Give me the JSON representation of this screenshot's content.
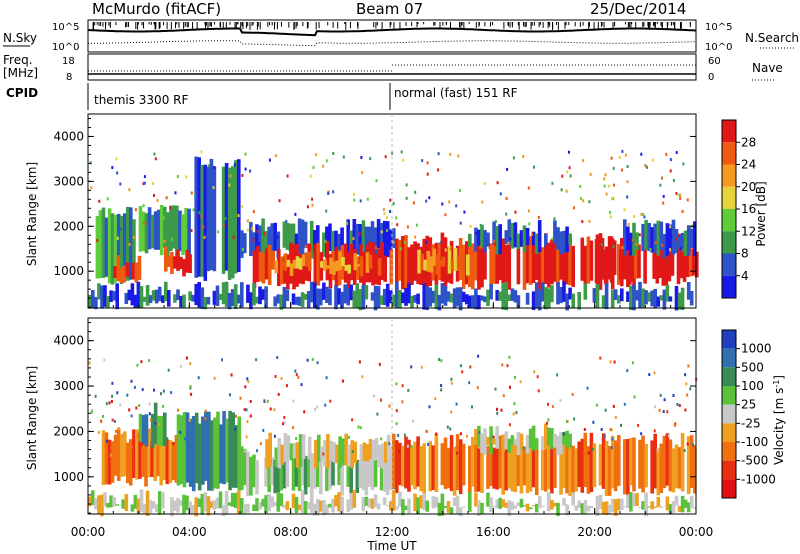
{
  "header": {
    "station": "McMurdo (fitACF)",
    "beam": "Beam 07",
    "date": "25/Dec/2014"
  },
  "strip": {
    "nsky_label": "N.Sky",
    "nsky_ticks": [
      "10^5",
      "10^0"
    ],
    "nsearch_label": "N.Search",
    "nsearch_ticks": [
      "10^5",
      "10^0"
    ],
    "freq_label": "Freq.",
    "freq_unit": "[MHz]",
    "freq_ticks": [
      "18",
      "8"
    ],
    "nave_label": "Nave",
    "nave_ticks": [
      "60",
      "0"
    ],
    "cpid_label": "CPID",
    "cpid_segments": [
      "themis 3300 RF",
      "normal (fast) 151 RF"
    ]
  },
  "xaxis": {
    "label": "Time UT",
    "ticks": [
      "00:00",
      "04:00",
      "08:00",
      "12:00",
      "16:00",
      "20:00",
      "00:00"
    ]
  },
  "power_panel": {
    "ylabel": "Slant Range [km]",
    "yticks": [
      "1000",
      "2000",
      "3000",
      "4000"
    ],
    "cbar_label": "Power [dB]",
    "cbar_ticks": [
      "4",
      "8",
      "12",
      "16",
      "20",
      "24",
      "28"
    ],
    "cbar_colors": [
      "#1a1ae6",
      "#2e52c8",
      "#3d9a4a",
      "#5fcc3a",
      "#e6d23a",
      "#f59a1e",
      "#f05a10",
      "#e01818"
    ]
  },
  "velocity_panel": {
    "ylabel": "Slant Range [km]",
    "yticks": [
      "1000",
      "2000",
      "3000",
      "4000"
    ],
    "cbar_label": "Velocity [m s",
    "cbar_label_sup": "-1",
    "cbar_label_end": "]",
    "cbar_ticks": [
      "1000",
      "500",
      "100",
      "25",
      "-25",
      "-100",
      "-500",
      "-1000"
    ],
    "cbar_colors": [
      "#2040c0",
      "#3070b0",
      "#3a8a58",
      "#5ac23a",
      "#c8c8c8",
      "#f0a020",
      "#f07010",
      "#e83010",
      "#e01010"
    ]
  },
  "chart_data": {
    "type": "heatmap",
    "x_range_hours": [
      0,
      24
    ],
    "y_range_km": [
      180,
      4500
    ],
    "note_cpid_change_ut": "12:00",
    "power_bands": [
      {
        "t0": 0.3,
        "t1": 1.8,
        "y0": 800,
        "y1": 2300,
        "level": 2
      },
      {
        "t0": 1.0,
        "t1": 2.0,
        "y0": 800,
        "y1": 1200,
        "level": 7
      },
      {
        "t0": 2.0,
        "t1": 4.5,
        "y0": 1400,
        "y1": 2400,
        "level": 2
      },
      {
        "t0": 3.0,
        "t1": 4.0,
        "y0": 1000,
        "y1": 1400,
        "level": 7
      },
      {
        "t0": 4.2,
        "t1": 6.0,
        "y0": 900,
        "y1": 3400,
        "level": 1
      },
      {
        "t0": 6.0,
        "t1": 12.0,
        "y0": 1400,
        "y1": 2000,
        "level": 1
      },
      {
        "t0": 6.5,
        "t1": 12.0,
        "y0": 700,
        "y1": 1500,
        "level": 7
      },
      {
        "t0": 7.0,
        "t1": 11.5,
        "y0": 1000,
        "y1": 1300,
        "level": 5
      },
      {
        "t0": 12.0,
        "t1": 21.5,
        "y0": 700,
        "y1": 1700,
        "level": 7
      },
      {
        "t0": 13.0,
        "t1": 15.0,
        "y0": 1000,
        "y1": 1400,
        "level": 5
      },
      {
        "t0": 15.0,
        "t1": 19.0,
        "y0": 1500,
        "y1": 2000,
        "level": 1
      },
      {
        "t0": 20.0,
        "t1": 24.0,
        "y0": 800,
        "y1": 1600,
        "level": 7
      },
      {
        "t0": 21.0,
        "t1": 24.0,
        "y0": 1400,
        "y1": 2000,
        "level": 1
      },
      {
        "t0": 0.0,
        "t1": 24.0,
        "y0": 250,
        "y1": 600,
        "level": 1
      }
    ],
    "velocity_bands": [
      {
        "t0": 0.3,
        "t1": 3.5,
        "y0": 900,
        "y1": 1900,
        "level": 6
      },
      {
        "t0": 2.0,
        "t1": 3.0,
        "y0": 1700,
        "y1": 2500,
        "level": 2
      },
      {
        "t0": 3.5,
        "t1": 6.0,
        "y0": 800,
        "y1": 2300,
        "level": 2
      },
      {
        "t0": 6.0,
        "t1": 12.0,
        "y0": 700,
        "y1": 1500,
        "level": 3
      },
      {
        "t0": 7.0,
        "t1": 12.0,
        "y0": 1300,
        "y1": 1800,
        "level": 4
      },
      {
        "t0": 12.0,
        "t1": 24.0,
        "y0": 700,
        "y1": 1800,
        "level": 6
      },
      {
        "t0": 15.0,
        "t1": 19.0,
        "y0": 1600,
        "y1": 2000,
        "level": 4
      },
      {
        "t0": 0.0,
        "t1": 12.0,
        "y0": 250,
        "y1": 550,
        "level": 4
      },
      {
        "t0": 12.0,
        "t1": 24.0,
        "y0": 250,
        "y1": 500,
        "level": 4
      }
    ]
  }
}
